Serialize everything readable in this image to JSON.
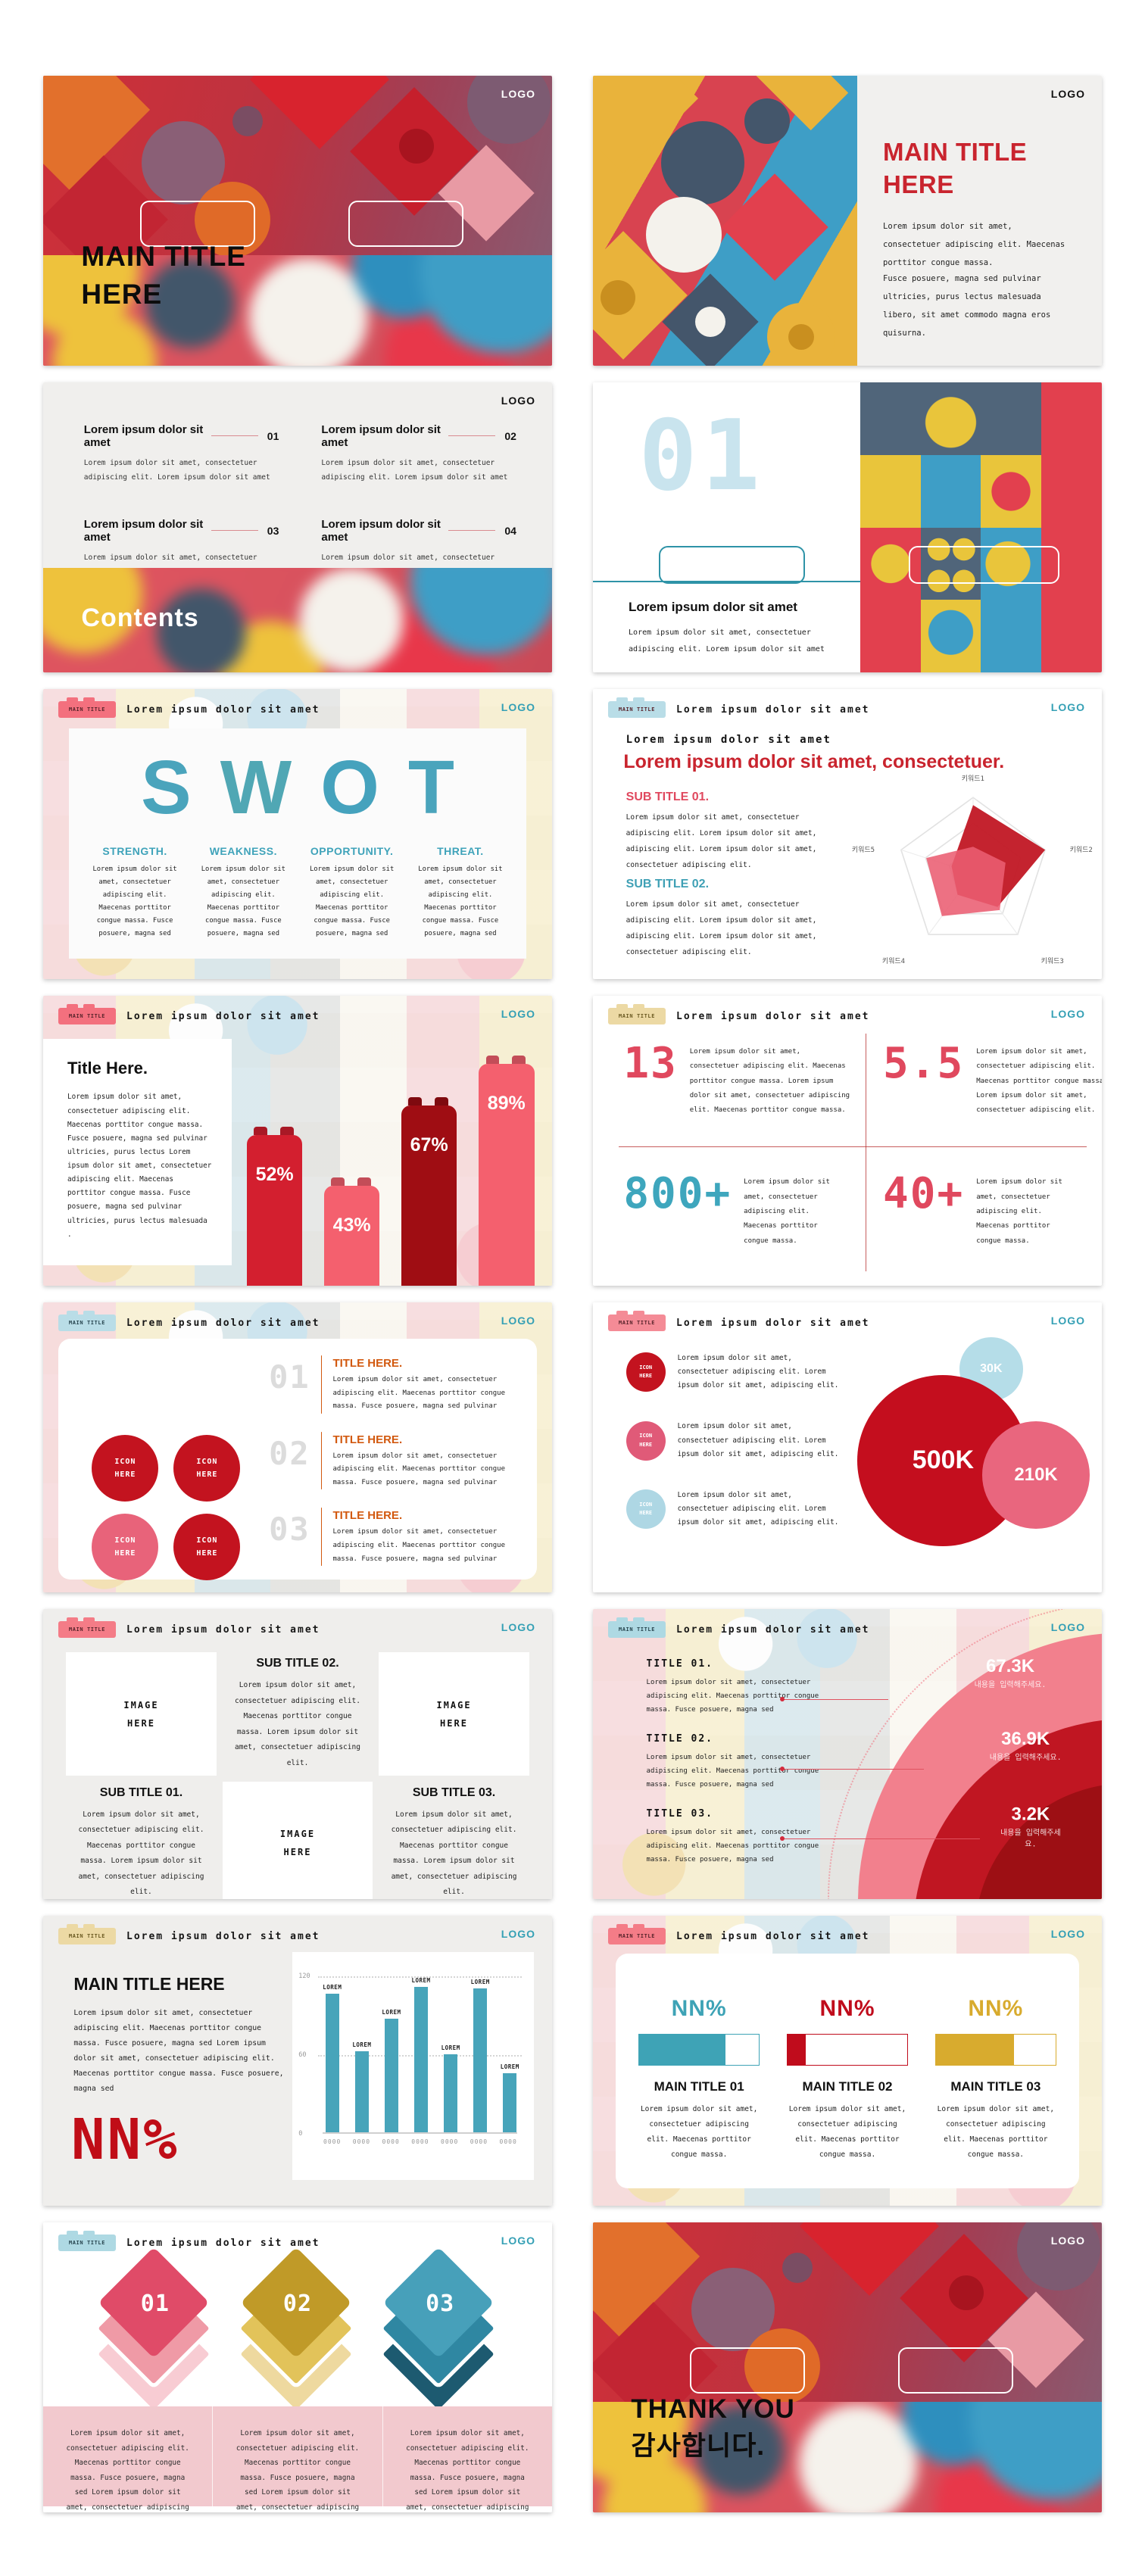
{
  "common": {
    "logo": "LOGO",
    "badge_label": "MAIN TITLE",
    "header_title": "Lorem ipsum dolor sit amet"
  },
  "colors": {
    "accent_red": "#c9242e",
    "accent_teal": "#35a0b5",
    "accent_gold": "#d8ab2e",
    "accent_orange": "#d2590f"
  },
  "slides": [
    {
      "name": "cover-dark",
      "title_l1": "MAIN TITLE",
      "title_l2": "HERE"
    },
    {
      "name": "cover-split",
      "title_l1": "MAIN TITLE",
      "title_l2": "HERE",
      "p1": "Lorem ipsum dolor sit amet, consectetuer adipiscing elit. Maecenas porttitor congue massa.",
      "p2": "Fusce posuere, magna sed pulvinar ultricies, purus lectus malesuada libero, sit amet commodo magna eros quisurna."
    },
    {
      "name": "contents",
      "title": "Contents",
      "items": [
        {
          "heading": "Lorem ipsum dolor sit amet",
          "num": "01",
          "body": "Lorem ipsum dolor sit amet, consectetuer adipiscing elit. Lorem ipsum dolor sit amet"
        },
        {
          "heading": "Lorem ipsum dolor sit amet",
          "num": "02",
          "body": "Lorem ipsum dolor sit amet, consectetuer adipiscing elit. Lorem ipsum dolor sit amet"
        },
        {
          "heading": "Lorem ipsum dolor sit amet",
          "num": "03",
          "body": "Lorem ipsum dolor sit amet, consectetuer adipiscing elit. Lorem ipsum dolor sit amet"
        },
        {
          "heading": "Lorem ipsum dolor sit amet",
          "num": "04",
          "body": "Lorem ipsum dolor sit amet, consectetuer adipiscing elit. Lorem ipsum dolor sit amet"
        }
      ]
    },
    {
      "name": "section-01",
      "number": "01",
      "heading": "Lorem ipsum dolor sit amet",
      "body": "Lorem ipsum dolor sit amet, consectetuer adipiscing elit. Lorem ipsum dolor sit amet"
    },
    {
      "name": "swot",
      "letters": [
        "S",
        "W",
        "O",
        "T"
      ],
      "cols": [
        {
          "t": "STRENGTH.",
          "b": "Lorem ipsum dolor sit amet, consectetuer adipiscing elit. Maecenas porttitor congue massa. Fusce posuere, magna sed"
        },
        {
          "t": "WEAKNESS.",
          "b": "Lorem ipsum dolor sit amet, consectetuer adipiscing elit. Maecenas porttitor congue massa. Fusce posuere, magna sed"
        },
        {
          "t": "OPPORTUNITY.",
          "b": "Lorem ipsum dolor sit amet, consectetuer adipiscing elit. Maecenas porttitor congue massa. Fusce posuere, magna sed"
        },
        {
          "t": "THREAT.",
          "b": "Lorem ipsum dolor sit amet, consectetuer adipiscing elit. Maecenas porttitor congue massa. Fusce posuere, magna sed"
        }
      ],
      "badge_color": "#f3707e"
    },
    {
      "name": "radar-slide",
      "badge_color": "#b9dde7",
      "subheading": "Lorem ipsum dolor sit amet",
      "red_title": "Lorem ipsum dolor sit amet, consectetuer.",
      "sub1": "SUB TITLE 01.",
      "sub1_color": "#e0485e",
      "sub2": "SUB TITLE 02.",
      "sub2_color": "#3fa0b5",
      "body": "Lorem ipsum dolor sit amet, consectetuer adipiscing elit. Lorem ipsum dolor sit amet, adipiscing elit. Lorem ipsum dolor sit amet, consectetuer adipiscing elit.",
      "radar": {
        "type": "radar",
        "labels": [
          "키워드1",
          "키워드2",
          "키워드3",
          "키워드4",
          "키워드5"
        ],
        "series": [
          {
            "color": "#c21a26",
            "values": [
              90,
              100,
              55,
              35,
              30
            ]
          },
          {
            "color": "#ea5d72",
            "values": [
              35,
              45,
              60,
              70,
              65
            ]
          }
        ],
        "max": 100
      }
    },
    {
      "name": "lego-bar-chart",
      "badge_color": "#f3707e",
      "card_title": "Title Here.",
      "card_body": "Lorem ipsum dolor sit amet, consectetuer adipiscing elit. Maecenas porttitor congue massa. Fusce posuere, magna sed pulvinar ultricies, purus lectus Lorem ipsum dolor sit amet, consectetuer adipiscing elit. Maecenas porttitor congue massa. Fusce posuere, magna sed pulvinar ultricies, purus lectus malesuada .",
      "chart": {
        "type": "bar",
        "values": [
          52,
          43,
          67,
          89
        ],
        "bars": [
          {
            "label": "52%",
            "h": "62%",
            "color": "#d31f2f"
          },
          {
            "label": "43%",
            "h": "41%",
            "color": "#f4606e"
          },
          {
            "label": "67%",
            "h": "74%",
            "color": "#9f0d13"
          },
          {
            "label": "89%",
            "h": "91%",
            "color": "#f4606e"
          }
        ]
      }
    },
    {
      "name": "big-numbers",
      "badge_color": "#ecd9a4",
      "stats": [
        {
          "v": "13",
          "color": "#e0485e",
          "body": "Lorem ipsum dolor sit amet, consectetuer adipiscing elit. Maecenas porttitor congue massa. Lorem ipsum dolor sit amet, consectetuer adipiscing elit. Maecenas porttitor congue massa."
        },
        {
          "v": "5.5",
          "color": "#e0485e",
          "body": "Lorem ipsum dolor sit amet, consectetuer adipiscing elit. Maecenas porttitor congue massa. Lorem ipsum dolor sit amet, consectetuer adipiscing elit."
        },
        {
          "v": "800+",
          "color": "#3ea6bd",
          "body": "Lorem ipsum dolor sit amet, consectetuer adipiscing elit. Maecenas porttitor congue massa."
        },
        {
          "v": "40+",
          "color": "#e0485e",
          "body": "Lorem ipsum dolor sit amet, consectetuer adipiscing elit. Maecenas porttitor congue massa."
        }
      ]
    },
    {
      "name": "numbered-list",
      "badge_color": "#b9dde7",
      "icon_label": "ICON HERE",
      "icon_colors": [
        "#c3131f",
        "#c3131f",
        "#e8637a",
        "#c3131f"
      ],
      "items": [
        {
          "num": "01",
          "t": "TITLE HERE.",
          "body": "Lorem ipsum dolor sit amet, consectetuer adipiscing elit. Maecenas porttitor congue massa. Fusce posuere, magna sed pulvinar"
        },
        {
          "num": "02",
          "t": "TITLE HERE.",
          "body": "Lorem ipsum dolor sit amet, consectetuer adipiscing elit. Maecenas porttitor congue massa. Fusce posuere, magna sed pulvinar"
        },
        {
          "num": "03",
          "t": "TITLE HERE.",
          "body": "Lorem ipsum dolor sit amet, consectetuer adipiscing elit. Maecenas porttitor congue massa. Fusce posuere, magna sed pulvinar"
        }
      ]
    },
    {
      "name": "bubble-chart",
      "badge_color": "#f48b96",
      "icon_label": "ICON HERE",
      "rows": [
        {
          "color": "#c3131f",
          "body": "Lorem ipsum dolor sit amet, consectetuer adipiscing elit. Lorem ipsum dolor sit amet, adipiscing elit."
        },
        {
          "color": "#e05a78",
          "body": "Lorem ipsum dolor sit amet, consectetuer adipiscing elit. Lorem ipsum dolor sit amet, adipiscing elit."
        },
        {
          "color": "#aed7e4",
          "body": "Lorem ipsum dolor sit amet, consectetuer adipiscing elit. Lorem ipsum dolor sit amet, adipiscing elit."
        }
      ],
      "bubbles": [
        {
          "label": "500K",
          "d": "226px",
          "color": "#c40e1e",
          "font": "34px"
        },
        {
          "label": "210K",
          "d": "142px",
          "color": "#e9667e",
          "font": "24px"
        },
        {
          "label": "30K",
          "d": "84px",
          "color": "#b5dde8",
          "font": "16px"
        }
      ]
    },
    {
      "name": "image-grid",
      "badge_color": "#f47c87",
      "img_label": "IMAGE HERE",
      "sub1": "SUB TITLE 01.",
      "sub2": "SUB TITLE 02.",
      "sub3": "SUB TITLE 03.",
      "body": "Lorem ipsum dolor sit amet, consectetuer adipiscing elit. Maecenas porttitor congue massa. Lorem ipsum dolor sit amet, consectetuer adipiscing elit."
    },
    {
      "name": "target-rings",
      "badge_color": "#aed9e3",
      "items": [
        {
          "t": "TITLE 01.",
          "body": "Lorem ipsum dolor sit amet, consectetuer adipiscing elit. Maecenas porttitor congue massa. Fusce posuere, magna sed"
        },
        {
          "t": "TITLE 02.",
          "body": "Lorem ipsum dolor sit amet, consectetuer adipiscing elit. Maecenas porttitor congue massa. Fusce posuere, magna sed"
        },
        {
          "t": "TITLE 03.",
          "body": "Lorem ipsum dolor sit amet, consectetuer adipiscing elit. Maecenas porttitor congue massa. Fusce posuere, magna sed"
        }
      ],
      "rings": [
        {
          "v": "67.3K",
          "sub": "내용을 입력해주세요.",
          "color": "#f2808d"
        },
        {
          "v": "36.9K",
          "sub": "내용을 입력해주세요.",
          "color": "#c01622"
        },
        {
          "v": "3.2K",
          "sub": "내용을 입력해주세요.",
          "color": "#9d0f14"
        }
      ]
    },
    {
      "name": "nn-bar-chart",
      "badge_color": "#ecd9a4",
      "title": "MAIN TITLE HERE",
      "body": "Lorem ipsum dolor sit amet, consectetuer adipiscing elit. Maecenas porttitor congue massa. Fusce posuere, magna sed Lorem ipsum dolor sit amet, consectetuer adipiscing elit. Maecenas porttitor congue massa. Fusce posuere, magna sed",
      "pct": "NN%",
      "chart": {
        "type": "bar",
        "ylim": [
          0,
          120
        ],
        "yticks": [
          "120",
          "60",
          "0"
        ],
        "values": [
          107,
          62,
          87,
          112,
          60,
          110,
          45
        ],
        "bars": [
          {
            "label": "LOREM",
            "x": "0000",
            "h": "89%"
          },
          {
            "label": "LOREM",
            "x": "0000",
            "h": "52%"
          },
          {
            "label": "LOREM",
            "x": "0000",
            "h": "73%"
          },
          {
            "label": "LOREM",
            "x": "0000",
            "h": "93%"
          },
          {
            "label": "LOREM",
            "x": "0000",
            "h": "50%"
          },
          {
            "label": "LOREM",
            "x": "0000",
            "h": "92%"
          },
          {
            "label": "LOREM",
            "x": "0000",
            "h": "38%"
          }
        ],
        "bar_color": "#47a4ba"
      }
    },
    {
      "name": "progress-columns",
      "badge_color": "#f47c87",
      "cols": [
        {
          "pct": "NN%",
          "color": "#3ea3b6",
          "fill": "72%",
          "t": "MAIN TITLE 01",
          "body": "Lorem ipsum dolor sit amet, consectetuer adipiscing elit. Maecenas porttitor congue massa."
        },
        {
          "pct": "NN%",
          "color": "#c00c1c",
          "fill": "15%",
          "t": "MAIN TITLE 02",
          "body": "Lorem ipsum dolor sit amet, consectetuer adipiscing elit. Maecenas porttitor congue massa."
        },
        {
          "pct": "NN%",
          "color": "#d8ab2e",
          "fill": "65%",
          "t": "MAIN TITLE 03",
          "body": "Lorem ipsum dolor sit amet, consectetuer adipiscing elit. Maecenas porttitor congue massa."
        }
      ]
    },
    {
      "name": "diamond-steps",
      "badge_color": "#aed9e3",
      "diamonds": [
        {
          "num": "01",
          "c1": "#e04b68",
          "c2": "#ef9aa6",
          "c3": "#f8ccd3"
        },
        {
          "num": "02",
          "c1": "#c09a28",
          "c2": "#e2c35a",
          "c3": "#eed99f"
        },
        {
          "num": "03",
          "c1": "#47a0ba",
          "c2": "#2f87a2",
          "c3": "#1d5a70"
        }
      ],
      "texts": [
        "Lorem ipsum dolor sit amet, consectetuer adipiscing elit. Maecenas porttitor congue massa. Fusce posuere, magna sed Lorem ipsum dolor sit amet, consectetuer adipiscing elit.",
        "Lorem ipsum dolor sit amet, consectetuer adipiscing elit. Maecenas porttitor congue massa. Fusce posuere, magna sed Lorem ipsum dolor sit amet, consectetuer adipiscing elit.",
        "Lorem ipsum dolor sit amet, consectetuer adipiscing elit. Maecenas porttitor congue massa. Fusce posuere, magna sed Lorem ipsum dolor sit amet, consectetuer adipiscing elit."
      ]
    },
    {
      "name": "thank-you",
      "t1": "THANK YOU",
      "t2": "감사합니다."
    }
  ]
}
